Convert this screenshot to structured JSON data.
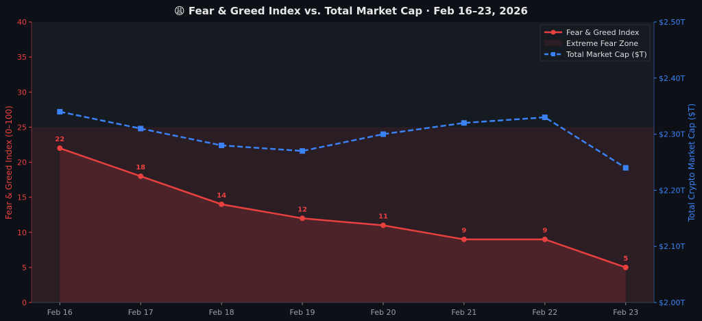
{
  "chart_data": {
    "type": "line",
    "title": "😩 Fear & Greed Index vs. Total Market Cap · Feb 16–23, 2026",
    "categories": [
      "Feb 16",
      "Feb 17",
      "Feb 18",
      "Feb 19",
      "Feb 20",
      "Feb 21",
      "Feb 22",
      "Feb 23"
    ],
    "series": [
      {
        "name": "Fear & Greed Index",
        "axis": "left",
        "values": [
          22,
          18,
          14,
          12,
          11,
          9,
          9,
          5
        ],
        "color": "#e8403f",
        "style": "solid",
        "marker": "circle",
        "data_labels": true
      },
      {
        "name": "Total Market Cap ($T)",
        "axis": "right",
        "values": [
          2.34,
          2.31,
          2.28,
          2.27,
          2.3,
          2.32,
          2.33,
          2.24
        ],
        "color": "#3b82f6",
        "style": "dashed",
        "marker": "square"
      }
    ],
    "zones": [
      {
        "name": "Extreme Fear Zone",
        "axis": "left",
        "from": 0,
        "to": 25,
        "color": "#2a1d24"
      }
    ],
    "ylabel": "Fear & Greed Index (0–100)",
    "ylim": [
      0,
      40
    ],
    "yticks": [
      "0",
      "5",
      "10",
      "15",
      "20",
      "25",
      "30",
      "35",
      "40"
    ],
    "y2label": "Total Crypto Market Cap ($T)",
    "y2lim": [
      2.0,
      2.5
    ],
    "y2ticks": [
      "$2.00T",
      "$2.10T",
      "$2.20T",
      "$2.30T",
      "$2.40T",
      "$2.50T"
    ],
    "legend": [
      "Fear & Greed Index",
      "Extreme Fear Zone",
      "Total Market Cap ($T)"
    ],
    "legend_position": "top-right",
    "grid": false
  }
}
